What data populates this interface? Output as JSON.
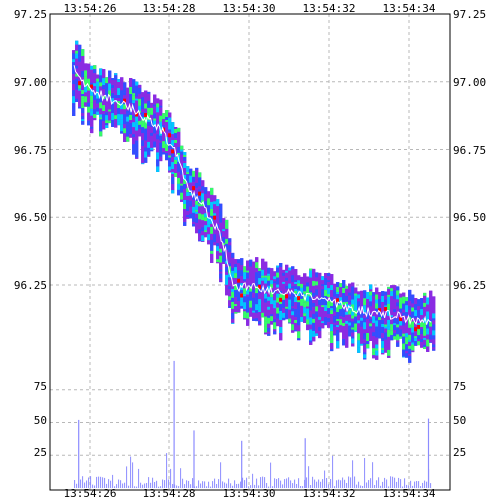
{
  "chart_data": {
    "type": "heatmap",
    "title": "",
    "xlabel": "",
    "ylabel": "",
    "time_ticks": [
      "13:54:26",
      "13:54:28",
      "13:54:30",
      "13:54:32",
      "13:54:34"
    ],
    "price_ticks": [
      "97.25",
      "97.00",
      "96.75",
      "96.50",
      "96.25"
    ],
    "volume_ticks": [
      "75",
      "50",
      "25"
    ],
    "price_ylim": [
      96.05,
      97.25
    ],
    "volume_ylim": [
      0,
      100
    ],
    "grid": true,
    "colors": {
      "background": "#ffffff",
      "grid": "#b8b8b8",
      "depth_low": "#8a2be2",
      "depth_mid": "#3050ff",
      "depth_high_1": "#00c8ff",
      "depth_high_2": "#33ff66",
      "depth_max": "#ff0000",
      "trade_line": "#ffffff",
      "volume_bars": "#8c8cff"
    },
    "price_series": [
      {
        "t": "13:54:25.6",
        "price": 97.05
      },
      {
        "t": "13:54:26.0",
        "price": 96.97
      },
      {
        "t": "13:54:26.6",
        "price": 96.93
      },
      {
        "t": "13:54:27.2",
        "price": 96.89
      },
      {
        "t": "13:54:27.8",
        "price": 96.82
      },
      {
        "t": "13:54:28.2",
        "price": 96.73
      },
      {
        "t": "13:54:28.4",
        "price": 96.62
      },
      {
        "t": "13:54:28.8",
        "price": 96.55
      },
      {
        "t": "13:54:29.2",
        "price": 96.46
      },
      {
        "t": "13:54:29.4",
        "price": 96.38
      },
      {
        "t": "13:54:29.6",
        "price": 96.24
      },
      {
        "t": "13:54:30.0",
        "price": 96.25
      },
      {
        "t": "13:54:30.6",
        "price": 96.23
      },
      {
        "t": "13:54:31.2",
        "price": 96.21
      },
      {
        "t": "13:54:31.8",
        "price": 96.2
      },
      {
        "t": "13:54:32.4",
        "price": 96.17
      },
      {
        "t": "13:54:33.0",
        "price": 96.15
      },
      {
        "t": "13:54:33.6",
        "price": 96.14
      },
      {
        "t": "13:54:34.2",
        "price": 96.12
      },
      {
        "t": "13:54:34.6",
        "price": 96.12
      }
    ],
    "volume_spikes": [
      {
        "t": "13:54:25.7",
        "volume": 52
      },
      {
        "t": "13:54:28.1",
        "volume": 97
      },
      {
        "t": "13:54:28.6",
        "volume": 44
      },
      {
        "t": "13:54:29.8",
        "volume": 36
      },
      {
        "t": "13:54:31.4",
        "volume": 38
      },
      {
        "t": "13:54:34.5",
        "volume": 53
      }
    ]
  }
}
